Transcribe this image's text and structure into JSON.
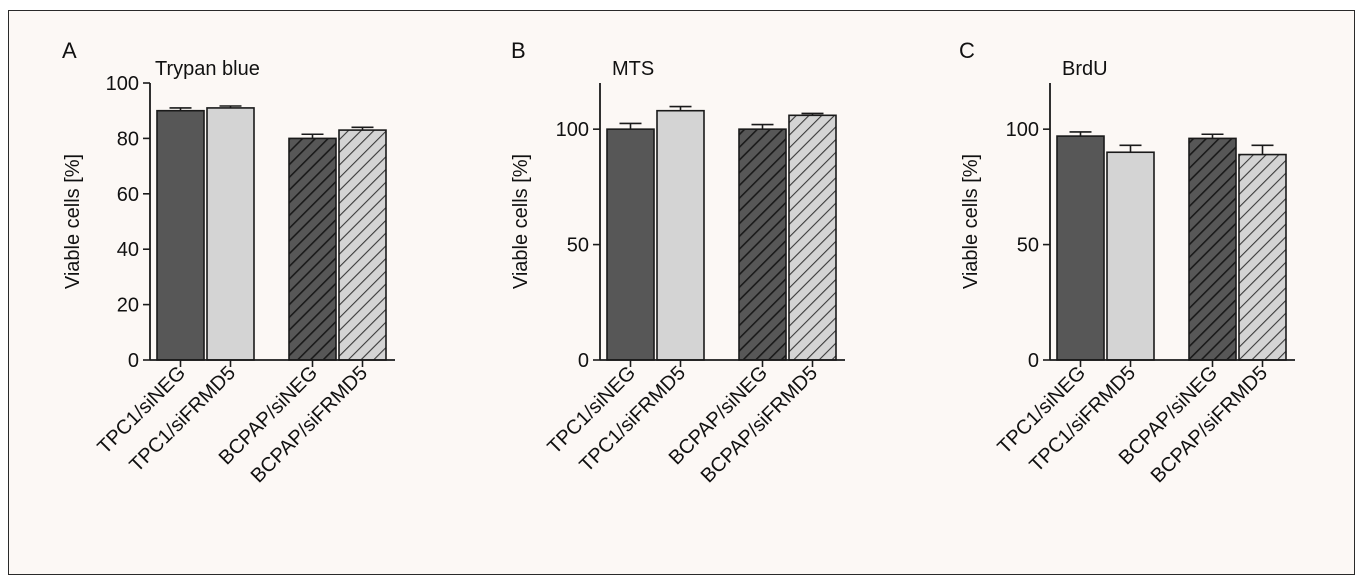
{
  "chart_data": [
    {
      "type": "bar",
      "panel_label": "A",
      "title": "Trypan blue",
      "ylabel": "Viable cells [%]",
      "xlabel": "",
      "ylim": [
        0,
        100
      ],
      "yticks": [
        0,
        20,
        40,
        60,
        80,
        100
      ],
      "categories": [
        "TPC1/siNEG",
        "TPC1/siFRMD5",
        "BCPAP/siNEG",
        "BCPAP/siFRMD5"
      ],
      "values": [
        90,
        91,
        80,
        83
      ],
      "errors": [
        1,
        0.7,
        1.5,
        1
      ]
    },
    {
      "type": "bar",
      "panel_label": "B",
      "title": "MTS",
      "ylabel": "Viable cells [%]",
      "xlabel": "",
      "ylim": [
        0,
        120
      ],
      "yticks": [
        0,
        50,
        100
      ],
      "categories": [
        "TPC1/siNEG",
        "TPC1/siFRMD5",
        "BCPAP/siNEG",
        "BCPAP/siFRMD5"
      ],
      "values": [
        100,
        108,
        100,
        106
      ],
      "errors": [
        2.5,
        1.8,
        2,
        0.8
      ]
    },
    {
      "type": "bar",
      "panel_label": "C",
      "title": "BrdU",
      "ylabel": "Viable cells [%]",
      "xlabel": "",
      "ylim": [
        0,
        120
      ],
      "yticks": [
        0,
        50,
        100
      ],
      "categories": [
        "TPC1/siNEG",
        "TPC1/siFRMD5",
        "BCPAP/siNEG",
        "BCPAP/siFRMD5"
      ],
      "values": [
        97,
        90,
        96,
        89
      ],
      "errors": [
        1.8,
        3,
        1.8,
        4
      ]
    }
  ],
  "colors": {
    "dark_bar": "#575757",
    "light_bar": "#d4d4d4",
    "stroke": "#1a1a1a",
    "hatch_on_dark": "#1a1a1a",
    "hatch_on_light": "#3a3a3a"
  }
}
